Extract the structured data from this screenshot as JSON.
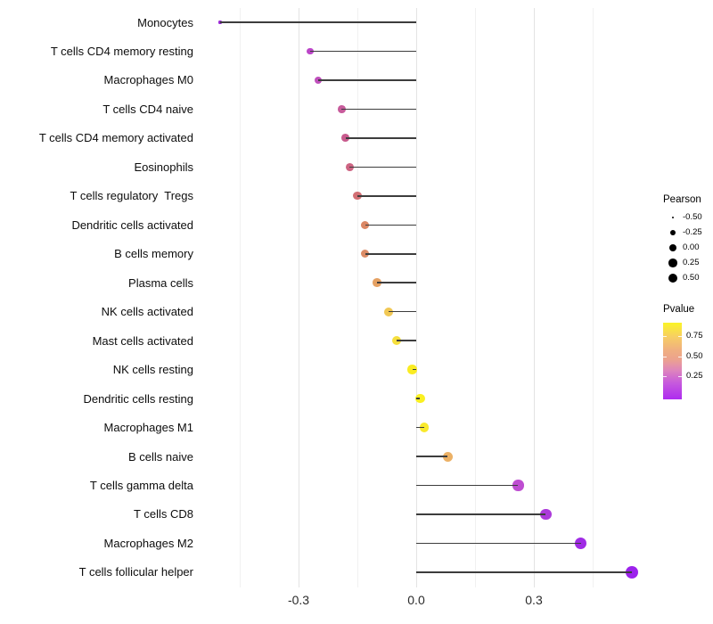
{
  "chart_data": {
    "type": "scatter",
    "subtype": "lollipop",
    "title": "",
    "xlabel": "",
    "ylabel": "",
    "grid": "vertical-only",
    "x_axis": {
      "major_ticks": [
        -0.3,
        0.0,
        0.3
      ],
      "major_tick_labels": [
        "-0.3",
        "0.0",
        "0.3"
      ],
      "minor_ticks": [
        -0.45,
        -0.15,
        0.15,
        0.45
      ],
      "range": [
        -0.56,
        0.6
      ]
    },
    "rows": [
      {
        "label": "Monocytes",
        "pearson": -0.5,
        "pvalue_est": 0.02,
        "color": "#9b2bd5"
      },
      {
        "label": "T cells CD4 memory resting",
        "pearson": -0.27,
        "pvalue_est": 0.12,
        "color": "#bb45c8"
      },
      {
        "label": "Macrophages M0",
        "pearson": -0.25,
        "pvalue_est": 0.15,
        "color": "#bf4fbc"
      },
      {
        "label": "T cells CD4 naive",
        "pearson": -0.19,
        "pvalue_est": 0.22,
        "color": "#c75b9b"
      },
      {
        "label": "T cells CD4 memory activated",
        "pearson": -0.18,
        "pvalue_est": 0.25,
        "color": "#c85a8d"
      },
      {
        "label": "Eosinophils",
        "pearson": -0.17,
        "pvalue_est": 0.28,
        "color": "#cd6482"
      },
      {
        "label": "T cells regulatory  Tregs",
        "pearson": -0.15,
        "pvalue_est": 0.33,
        "color": "#d26f74"
      },
      {
        "label": "Dendritic cells activated",
        "pearson": -0.13,
        "pvalue_est": 0.42,
        "color": "#db8764"
      },
      {
        "label": "B cells memory",
        "pearson": -0.13,
        "pvalue_est": 0.43,
        "color": "#dc8c66"
      },
      {
        "label": "Plasma cells",
        "pearson": -0.1,
        "pvalue_est": 0.52,
        "color": "#e5a163"
      },
      {
        "label": "NK cells activated",
        "pearson": -0.07,
        "pvalue_est": 0.68,
        "color": "#f1c854"
      },
      {
        "label": "Mast cells activated",
        "pearson": -0.05,
        "pvalue_est": 0.78,
        "color": "#f6df3d"
      },
      {
        "label": "NK cells resting",
        "pearson": -0.01,
        "pvalue_est": 0.88,
        "color": "#faec22"
      },
      {
        "label": "Dendritic cells resting",
        "pearson": 0.01,
        "pvalue_est": 0.9,
        "color": "#faf021"
      },
      {
        "label": "Macrophages M1",
        "pearson": 0.02,
        "pvalue_est": 0.85,
        "color": "#f9e92c"
      },
      {
        "label": "B cells naive",
        "pearson": 0.08,
        "pvalue_est": 0.58,
        "color": "#ecb166"
      },
      {
        "label": "T cells gamma delta",
        "pearson": 0.26,
        "pvalue_est": 0.13,
        "color": "#be4dd1"
      },
      {
        "label": "T cells CD8",
        "pearson": 0.33,
        "pvalue_est": 0.07,
        "color": "#ac3ada"
      },
      {
        "label": "Macrophages M2",
        "pearson": 0.42,
        "pvalue_est": 0.04,
        "color": "#a02be5"
      },
      {
        "label": "T cells follicular helper",
        "pearson": 0.55,
        "pvalue_est": 0.02,
        "color": "#9c22ec"
      }
    ],
    "legend_size": {
      "title": "Pearson",
      "entries": [
        "-0.50",
        "-0.25",
        "0.00",
        "0.25",
        "0.50"
      ]
    },
    "legend_color": {
      "title": "Pvalue",
      "tick_labels": [
        "0.75",
        "0.50",
        "0.25"
      ],
      "gradient_top_to_bottom": [
        {
          "pos": 0.0,
          "color": "#fbf426"
        },
        {
          "pos": 0.18,
          "color": "#f7cf63"
        },
        {
          "pos": 0.35,
          "color": "#f0b07f"
        },
        {
          "pos": 0.48,
          "color": "#eca28e"
        },
        {
          "pos": 0.62,
          "color": "#de85bc"
        },
        {
          "pos": 0.78,
          "color": "#c75bdc"
        },
        {
          "pos": 1.0,
          "color": "#ae2bf0"
        }
      ]
    },
    "stem_color": "#3d3d3d"
  }
}
